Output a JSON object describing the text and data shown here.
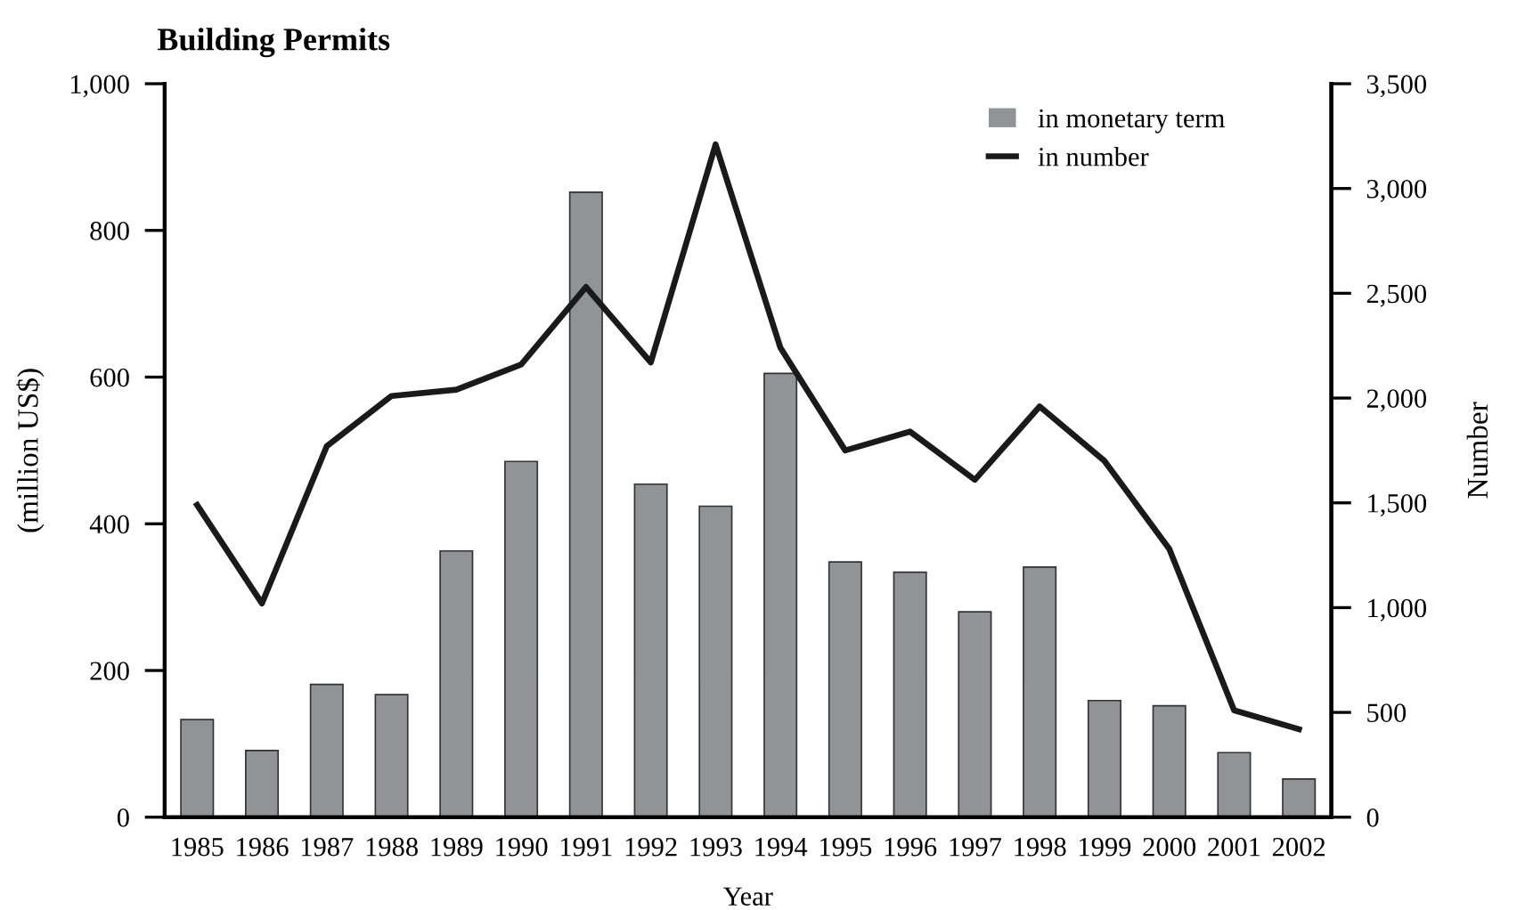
{
  "chart_data": {
    "type": "bar",
    "title": "Building Permits",
    "xlabel": "Year",
    "ylabel": "(million US$)",
    "y2label": "Number",
    "categories": [
      "1985",
      "1986",
      "1987",
      "1988",
      "1989",
      "1990",
      "1991",
      "1992",
      "1993",
      "1994",
      "1995",
      "1996",
      "1997",
      "1998",
      "1999",
      "2000",
      "2001",
      "2002"
    ],
    "series": [
      {
        "name": "in monetary term",
        "color": "#929397",
        "values": [
          133,
          91,
          181,
          167,
          363,
          485,
          852,
          454,
          424,
          605,
          348,
          334,
          280,
          341,
          159,
          152,
          88,
          52
        ]
      },
      {
        "name": "in number",
        "type": "line",
        "axis": "y2",
        "color": "#1a1a1a",
        "values": [
          1490,
          1020,
          1770,
          2010,
          2040,
          2160,
          2530,
          2170,
          3210,
          2240,
          1750,
          1840,
          1610,
          1960,
          1700,
          1280,
          510,
          420
        ]
      }
    ],
    "ylim": [
      0,
      1000
    ],
    "yticks": [
      0,
      {
        "value": 200,
        "label": "200"
      },
      {
        "value": 400,
        "label": "400"
      },
      {
        "value": 600,
        "label": "600"
      },
      {
        "value": 800,
        "label": "800"
      },
      {
        "value": 1000,
        "label": "1,000"
      }
    ],
    "y2lim": [
      0,
      3500
    ],
    "y2ticks": [
      0,
      500,
      {
        "value": 1000,
        "label": "1,000"
      },
      {
        "value": 1500,
        "label": "1,500"
      },
      {
        "value": 2000,
        "label": "2,000"
      },
      {
        "value": 2500,
        "label": "2,500"
      },
      {
        "value": 3000,
        "label": "3,000"
      },
      {
        "value": 3500,
        "label": "3,500"
      }
    ],
    "legend": "top right",
    "grid": false,
    "marker": "none",
    "line_style": "solid"
  }
}
